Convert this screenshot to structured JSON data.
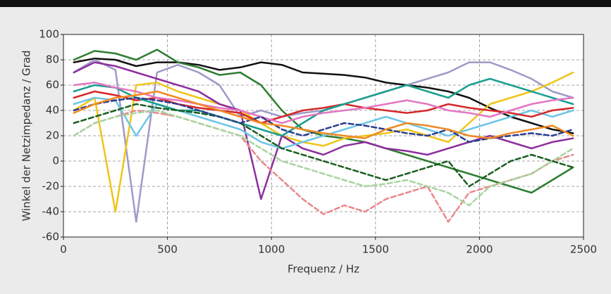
{
  "chart_data": {
    "type": "line",
    "xlabel": "Frequenz / Hz",
    "ylabel": "Winkel der Netzimpedanz / Grad",
    "xlim": [
      0,
      2500
    ],
    "xticks": [
      0,
      500,
      1000,
      1500,
      2000,
      2500
    ],
    "ylim": [
      -60,
      100
    ],
    "yticks": [
      -60,
      -40,
      -20,
      0,
      20,
      40,
      60,
      80,
      100
    ],
    "grid": true,
    "x": [
      50,
      150,
      250,
      350,
      450,
      550,
      650,
      750,
      850,
      950,
      1050,
      1150,
      1250,
      1350,
      1450,
      1550,
      1650,
      1750,
      1850,
      1950,
      2050,
      2150,
      2250,
      2350,
      2450
    ],
    "series": [
      {
        "color": "#111111",
        "dashed": false,
        "values": [
          78,
          81,
          80,
          75,
          78,
          78,
          76,
          72,
          74,
          78,
          76,
          70,
          69,
          68,
          66,
          62,
          60,
          58,
          55,
          50,
          42,
          35,
          30,
          25,
          22
        ]
      },
      {
        "color": "#2e7d32",
        "dashed": false,
        "values": [
          80,
          87,
          85,
          80,
          88,
          78,
          74,
          68,
          70,
          60,
          40,
          25,
          20,
          18,
          15,
          10,
          5,
          0,
          -5,
          -10,
          -15,
          -20,
          -25,
          -15,
          -5
        ]
      },
      {
        "color": "#9e9ac8",
        "dashed": false,
        "values": [
          70,
          80,
          72,
          -48,
          70,
          76,
          70,
          60,
          35,
          40,
          35,
          38,
          40,
          45,
          50,
          55,
          60,
          65,
          70,
          78,
          78,
          72,
          65,
          55,
          50
        ]
      },
      {
        "color": "#f0c419",
        "dashed": false,
        "values": [
          40,
          50,
          -40,
          60,
          62,
          55,
          50,
          45,
          40,
          30,
          20,
          15,
          12,
          18,
          20,
          22,
          25,
          20,
          15,
          30,
          45,
          50,
          55,
          62,
          70
        ]
      },
      {
        "color": "#8e2f9e",
        "dashed": false,
        "values": [
          70,
          78,
          75,
          70,
          65,
          60,
          55,
          45,
          40,
          -30,
          20,
          10,
          5,
          12,
          15,
          10,
          8,
          5,
          10,
          15,
          20,
          15,
          10,
          15,
          18
        ]
      },
      {
        "color": "#6ec6e6",
        "dashed": false,
        "values": [
          45,
          50,
          48,
          20,
          45,
          40,
          35,
          30,
          25,
          15,
          10,
          15,
          20,
          25,
          30,
          35,
          30,
          25,
          20,
          25,
          30,
          35,
          40,
          35,
          40
        ]
      },
      {
        "color": "#d62728",
        "dashed": false,
        "values": [
          50,
          55,
          52,
          48,
          50,
          45,
          42,
          40,
          38,
          30,
          35,
          40,
          42,
          45,
          42,
          40,
          38,
          40,
          45,
          42,
          40,
          38,
          35,
          40,
          42
        ]
      },
      {
        "color": "#e8888a",
        "dashed": true,
        "values": [
          20,
          30,
          35,
          40,
          38,
          35,
          30,
          25,
          20,
          0,
          -15,
          -30,
          -42,
          -35,
          -40,
          -30,
          -25,
          -20,
          -48,
          -25,
          -20,
          -15,
          -10,
          0,
          5
        ]
      },
      {
        "color": "#a8d5a0",
        "dashed": true,
        "values": [
          20,
          30,
          35,
          38,
          40,
          35,
          30,
          25,
          20,
          10,
          0,
          -5,
          -10,
          -15,
          -20,
          -18,
          -15,
          -20,
          -25,
          -35,
          -20,
          -15,
          -10,
          0,
          10
        ]
      },
      {
        "color": "#1a9e8f",
        "dashed": false,
        "values": [
          55,
          60,
          58,
          50,
          45,
          40,
          40,
          35,
          30,
          25,
          20,
          30,
          40,
          45,
          50,
          55,
          60,
          55,
          50,
          60,
          65,
          60,
          55,
          50,
          45
        ]
      },
      {
        "color": "#e377c2",
        "dashed": false,
        "values": [
          60,
          62,
          58,
          55,
          50,
          48,
          45,
          42,
          40,
          35,
          30,
          35,
          38,
          40,
          42,
          45,
          48,
          45,
          40,
          38,
          35,
          40,
          45,
          48,
          50
        ]
      },
      {
        "color": "#1b5e20",
        "dashed": true,
        "values": [
          30,
          35,
          40,
          45,
          42,
          40,
          38,
          35,
          30,
          20,
          10,
          5,
          0,
          -5,
          -10,
          -15,
          -10,
          -5,
          0,
          -20,
          -10,
          0,
          5,
          0,
          -5
        ]
      },
      {
        "color": "#2c3e8f",
        "dashed": true,
        "values": [
          40,
          45,
          48,
          50,
          48,
          45,
          40,
          35,
          30,
          35,
          25,
          20,
          25,
          30,
          28,
          25,
          22,
          20,
          25,
          15,
          18,
          20,
          22,
          20,
          25
        ]
      },
      {
        "color": "#f08a24",
        "dashed": false,
        "values": [
          38,
          45,
          50,
          52,
          55,
          50,
          45,
          40,
          35,
          30,
          28,
          25,
          22,
          20,
          18,
          25,
          30,
          28,
          25,
          20,
          18,
          22,
          25,
          28,
          20
        ]
      }
    ]
  }
}
